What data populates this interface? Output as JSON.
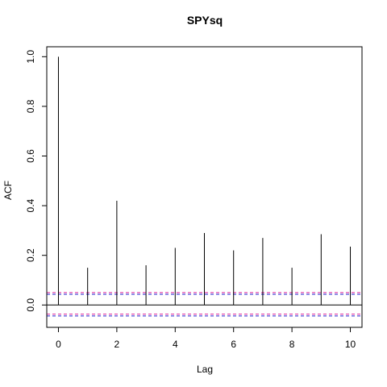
{
  "chart_data": {
    "type": "bar",
    "subtype": "acf",
    "title": "SPYsq",
    "xlabel": "Lag",
    "ylabel": "ACF",
    "x": [
      0,
      1,
      2,
      3,
      4,
      5,
      6,
      7,
      8,
      9,
      10
    ],
    "values": [
      1.0,
      0.15,
      0.42,
      0.16,
      0.23,
      0.29,
      0.22,
      0.27,
      0.15,
      0.285,
      0.235
    ],
    "xlim": [
      -0.4,
      10.4
    ],
    "ylim": [
      -0.09,
      1.04
    ],
    "xticks": [
      0,
      2,
      4,
      6,
      8,
      10
    ],
    "xtick_labels": [
      "0",
      "2",
      "4",
      "6",
      "8",
      "10"
    ],
    "yticks": [
      0.0,
      0.2,
      0.4,
      0.6,
      0.8,
      1.0
    ],
    "ytick_labels": [
      "0.0",
      "0.2",
      "0.4",
      "0.6",
      "0.8",
      "1.0"
    ],
    "confidence_bounds": [
      0.05,
      0.043,
      -0.037,
      -0.044
    ],
    "zero_line": 0,
    "grid": false,
    "colors": {
      "bars": "#000000",
      "confidence_upper": "#dd2299",
      "confidence_lower": "#2222cc",
      "frame": "#000000"
    }
  }
}
